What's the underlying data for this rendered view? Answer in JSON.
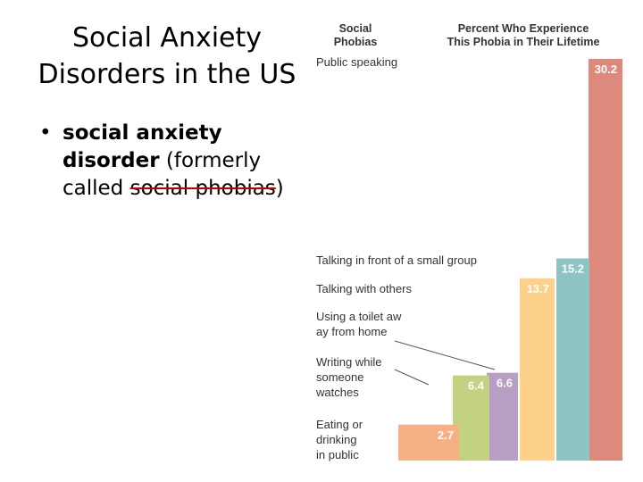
{
  "slide": {
    "title_line1": "Social Anxiety",
    "title_line2": "Disorders in the US",
    "bullet": {
      "dot": "•",
      "bold_part": "social anxiety disorder",
      "normal_part": " (formerly called ",
      "struck_part": "social phobias",
      "tail": ")"
    }
  },
  "chart_data": {
    "type": "bar",
    "orientation": "vertical",
    "header_left_line1": "Social",
    "header_left_line2": "Phobias",
    "header_right_line1": "Percent Who Experience",
    "header_right_line2": "This Phobia in Their Lifetime",
    "categories": [
      "Public speaking",
      "Talking in front of a small group",
      "Talking with others",
      "Using a toilet away from home",
      "Writing while someone watches",
      "Eating or drinking in public"
    ],
    "values": [
      30.2,
      15.2,
      13.7,
      6.6,
      6.4,
      2.7
    ],
    "colors": [
      "#dd897c",
      "#8ec4c4",
      "#fdd08c",
      "#b89ec2",
      "#c2d281",
      "#f7b083"
    ],
    "ylim": [
      0,
      30.2
    ],
    "grid": false,
    "legend": "none"
  }
}
